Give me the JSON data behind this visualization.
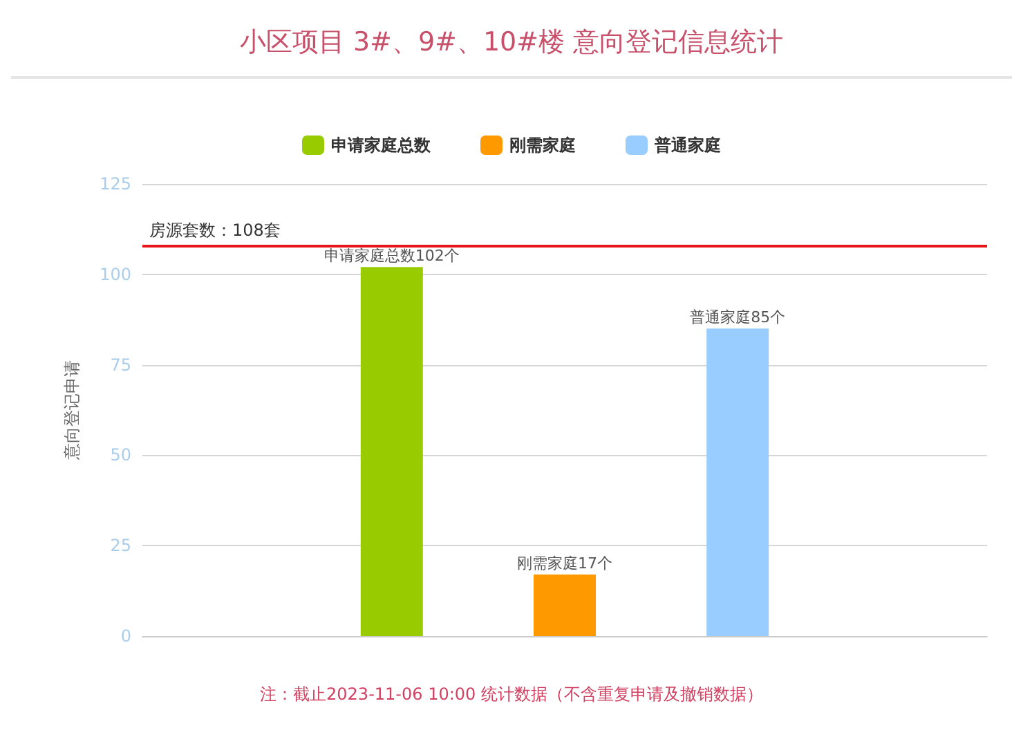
{
  "chart_data": {
    "type": "bar",
    "title": "小区项目 3#、9#、10#楼 意向登记信息统计",
    "ylabel": "意向登记申请",
    "categories": [
      null
    ],
    "series": [
      {
        "name": "申请家庭总数",
        "color": "#99cc00",
        "values": [
          102
        ],
        "value_labels": [
          "申请家庭总数102个"
        ]
      },
      {
        "name": "刚需家庭",
        "color": "#ff9900",
        "values": [
          17
        ],
        "value_labels": [
          "刚需家庭17个"
        ]
      },
      {
        "name": "普通家庭",
        "color": "#99ccff",
        "values": [
          85
        ],
        "value_labels": [
          "普通家庭85个"
        ]
      }
    ],
    "ylim": [
      0,
      125
    ],
    "yticks": [
      0,
      25,
      50,
      75,
      100,
      125
    ],
    "grid": "y",
    "legend": "top",
    "ref_lines": [
      {
        "axis": "y",
        "value": 108,
        "label": "房源套数：108套",
        "color": "#e8141c"
      }
    ],
    "annotations": [
      "注：截止2023-11-06 10:00 统计数据（不含重复申请及撤销数据）"
    ]
  }
}
